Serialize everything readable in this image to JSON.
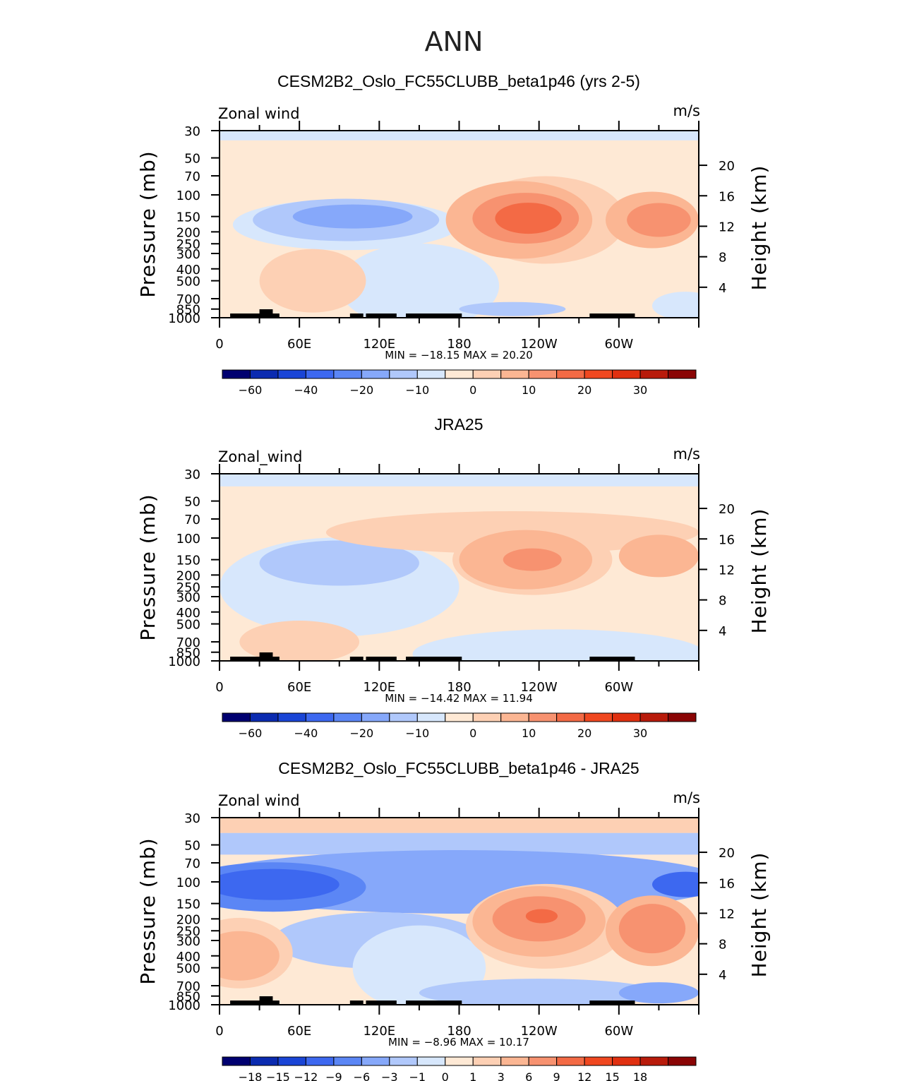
{
  "figure_title": "ANN",
  "colors": {
    "levels_abs": [
      "#000070",
      "#0b2bb0",
      "#1a45d6",
      "#3d68f0",
      "#5b86f5",
      "#86a8fa",
      "#b0c8fb",
      "#d7e7fc",
      "#fee9d5",
      "#fdd0b4",
      "#fbb693",
      "#f79270",
      "#f36a45",
      "#f04820",
      "#e03010",
      "#b81b0b",
      "#8a0505"
    ],
    "levels_diff": [
      "#000070",
      "#0b2bb0",
      "#1a45d6",
      "#3d68f0",
      "#5b86f5",
      "#86a8fa",
      "#b0c8fb",
      "#d7e7fc",
      "#fee9d5",
      "#fdd0b4",
      "#fbb693",
      "#f79270",
      "#f36a45",
      "#f04820",
      "#e03010",
      "#b81b0b",
      "#8a0505"
    ]
  },
  "chart_data": [
    {
      "type": "contour",
      "title": "CESM2B2_Oslo_FC55CLUBB_beta1p46 (yrs 2-5)",
      "left_label": "Zonal wind",
      "units": "m/s",
      "ylabel": "Pressure (mb)",
      "y2label": "Height (km)",
      "y_ticks": [
        "30",
        "50",
        "70",
        "100",
        "150",
        "200",
        "250",
        "300",
        "400",
        "500",
        "700",
        "850",
        "1000"
      ],
      "y2_ticks": [
        "20",
        "16",
        "12",
        "8",
        "4"
      ],
      "x_ticks": [
        "0",
        "60E",
        "120E",
        "180",
        "120W",
        "60W"
      ],
      "min_max": "MIN =  −18.15   MAX =   20.20",
      "colorbar_labels": [
        "−60",
        "−40",
        "−20",
        "−10",
        "0",
        "10",
        "20",
        "30"
      ],
      "min_value": -18.15,
      "max_value": 20.2
    },
    {
      "type": "contour",
      "title": "JRA25",
      "left_label": "Zonal_wind",
      "units": "m/s",
      "ylabel": "Pressure (mb)",
      "y2label": "Height (km)",
      "y_ticks": [
        "30",
        "50",
        "70",
        "100",
        "150",
        "200",
        "250",
        "300",
        "400",
        "500",
        "700",
        "850",
        "1000"
      ],
      "y2_ticks": [
        "20",
        "16",
        "12",
        "8",
        "4"
      ],
      "x_ticks": [
        "0",
        "60E",
        "120E",
        "180",
        "120W",
        "60W"
      ],
      "min_max": "MIN =  −14.42   MAX =   11.94",
      "colorbar_labels": [
        "−60",
        "−40",
        "−20",
        "−10",
        "0",
        "10",
        "20",
        "30"
      ],
      "min_value": -14.42,
      "max_value": 11.94
    },
    {
      "type": "contour",
      "title": "CESM2B2_Oslo_FC55CLUBB_beta1p46 - JRA25",
      "left_label": "Zonal wind",
      "units": "m/s",
      "ylabel": "Pressure (mb)",
      "y2label": "Height (km)",
      "y_ticks": [
        "30",
        "50",
        "70",
        "100",
        "150",
        "200",
        "250",
        "300",
        "400",
        "500",
        "700",
        "850",
        "1000"
      ],
      "y2_ticks": [
        "20",
        "16",
        "12",
        "8",
        "4"
      ],
      "x_ticks": [
        "0",
        "60E",
        "120E",
        "180",
        "120W",
        "60W"
      ],
      "min_max": "MIN =   −8.96   MAX =   10.17",
      "colorbar_labels": [
        "−18",
        "−15",
        "−12",
        "−9",
        "−6",
        "−3",
        "−1",
        "0",
        "1",
        "3",
        "6",
        "9",
        "12",
        "15",
        "18"
      ],
      "min_value": -8.96,
      "max_value": 10.17
    }
  ]
}
